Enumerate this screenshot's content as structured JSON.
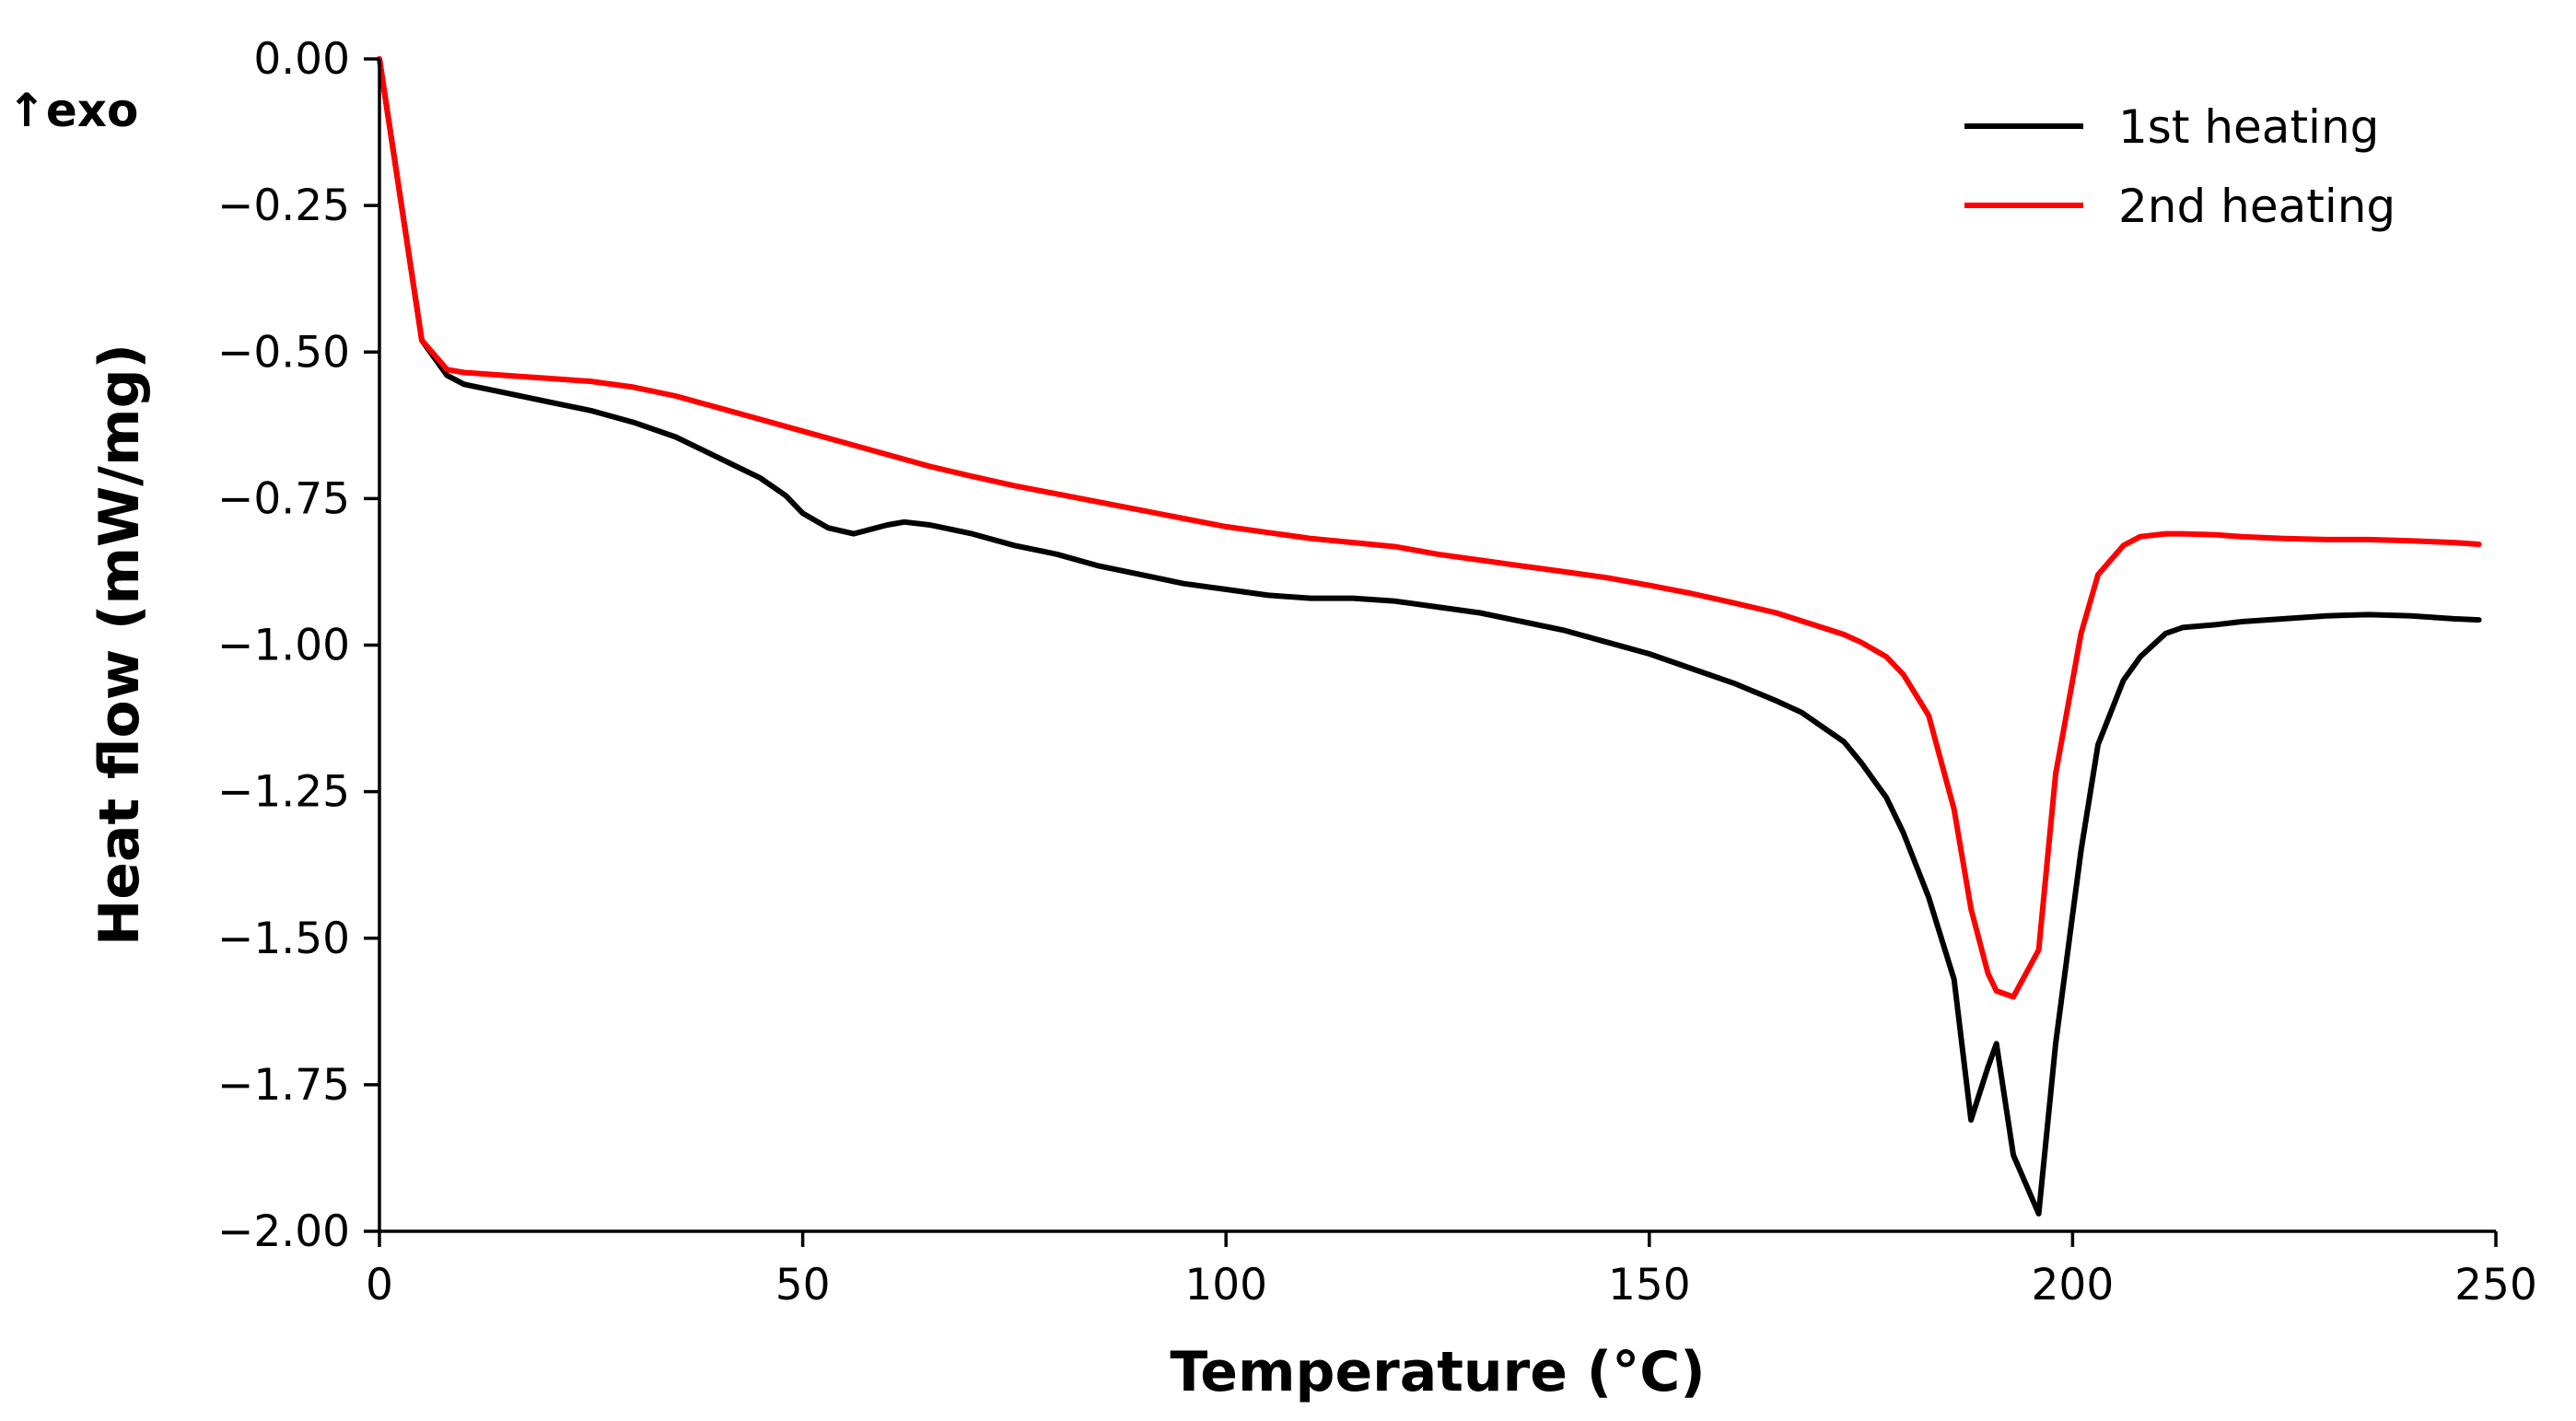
{
  "chart_data": {
    "type": "line",
    "title": "",
    "xlabel": "Temperature (°C)",
    "ylabel": "Heat flow (mW/mg)",
    "annotation": "↑exo",
    "xlim": [
      0,
      250
    ],
    "ylim": [
      -2.0,
      0.0
    ],
    "xticks": [
      0,
      50,
      100,
      150,
      200,
      250
    ],
    "xtick_labels": [
      "0",
      "50",
      "100",
      "150",
      "200",
      "250"
    ],
    "yticks": [
      0.0,
      -0.25,
      -0.5,
      -0.75,
      -1.0,
      -1.25,
      -1.5,
      -1.75,
      -2.0
    ],
    "ytick_labels": [
      "0.00",
      "−0.25",
      "−0.50",
      "−0.75",
      "−1.00",
      "−1.25",
      "−1.50",
      "−1.75",
      "−2.00"
    ],
    "grid": false,
    "legend_position": "top-right",
    "series": [
      {
        "name": "1st heating",
        "color": "#000000",
        "x": [
          0,
          5,
          8,
          10,
          15,
          20,
          25,
          30,
          35,
          40,
          45,
          48,
          50,
          53,
          56,
          60,
          62,
          65,
          70,
          75,
          80,
          85,
          90,
          95,
          100,
          105,
          110,
          115,
          120,
          125,
          130,
          135,
          140,
          145,
          150,
          155,
          160,
          165,
          168,
          170,
          173,
          175,
          178,
          180,
          183,
          186,
          188,
          190,
          191,
          193,
          196,
          198,
          201,
          203,
          206,
          208,
          211,
          213,
          217,
          220,
          225,
          230,
          235,
          240,
          245,
          248
        ],
        "y": [
          0.0,
          -0.48,
          -0.54,
          -0.555,
          -0.57,
          -0.585,
          -0.6,
          -0.62,
          -0.645,
          -0.68,
          -0.715,
          -0.745,
          -0.775,
          -0.8,
          -0.81,
          -0.795,
          -0.79,
          -0.795,
          -0.81,
          -0.83,
          -0.845,
          -0.865,
          -0.88,
          -0.895,
          -0.905,
          -0.915,
          -0.92,
          -0.92,
          -0.925,
          -0.935,
          -0.945,
          -0.96,
          -0.975,
          -0.995,
          -1.015,
          -1.04,
          -1.065,
          -1.095,
          -1.115,
          -1.135,
          -1.165,
          -1.2,
          -1.26,
          -1.32,
          -1.43,
          -1.57,
          -1.81,
          -1.72,
          -1.68,
          -1.87,
          -1.97,
          -1.68,
          -1.35,
          -1.17,
          -1.06,
          -1.02,
          -0.98,
          -0.97,
          -0.965,
          -0.96,
          -0.955,
          -0.95,
          -0.948,
          -0.95,
          -0.955,
          -0.957
        ]
      },
      {
        "name": "2nd heating",
        "color": "#ff0000",
        "x": [
          0,
          5,
          8,
          10,
          15,
          20,
          25,
          30,
          35,
          40,
          45,
          50,
          55,
          60,
          65,
          70,
          75,
          80,
          85,
          90,
          95,
          100,
          105,
          110,
          115,
          120,
          125,
          130,
          135,
          140,
          145,
          150,
          155,
          160,
          165,
          170,
          173,
          175,
          178,
          180,
          183,
          186,
          188,
          190,
          191,
          193,
          196,
          198,
          201,
          203,
          206,
          208,
          211,
          213,
          217,
          220,
          225,
          230,
          235,
          240,
          245,
          248
        ],
        "y": [
          0.0,
          -0.48,
          -0.53,
          -0.535,
          -0.54,
          -0.545,
          -0.55,
          -0.56,
          -0.575,
          -0.595,
          -0.615,
          -0.635,
          -0.655,
          -0.675,
          -0.695,
          -0.712,
          -0.728,
          -0.742,
          -0.756,
          -0.77,
          -0.784,
          -0.798,
          -0.808,
          -0.818,
          -0.825,
          -0.832,
          -0.845,
          -0.855,
          -0.865,
          -0.875,
          -0.885,
          -0.898,
          -0.912,
          -0.928,
          -0.945,
          -0.968,
          -0.982,
          -0.995,
          -1.02,
          -1.05,
          -1.12,
          -1.28,
          -1.45,
          -1.56,
          -1.59,
          -1.6,
          -1.52,
          -1.22,
          -0.98,
          -0.88,
          -0.83,
          -0.815,
          -0.81,
          -0.81,
          -0.812,
          -0.815,
          -0.818,
          -0.82,
          -0.82,
          -0.822,
          -0.825,
          -0.828
        ]
      }
    ]
  }
}
